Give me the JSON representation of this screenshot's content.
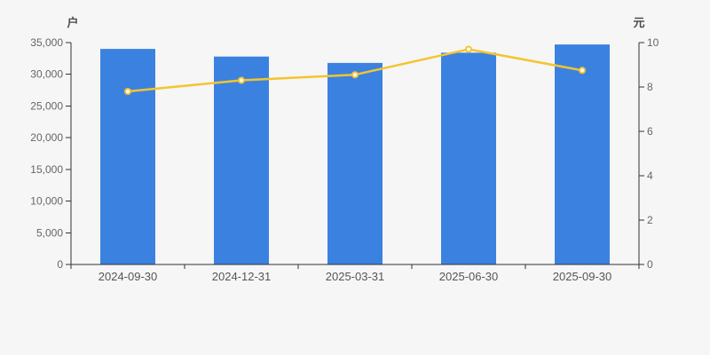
{
  "app": {
    "background_color": "#f6f6f7",
    "axis_line_color": "#333333",
    "tick_label_color": "#666666",
    "x_label_color": "#555555",
    "axis_name_color": "#4c4c4c"
  },
  "chart_data": {
    "type": "bar+line combo (dual y-axis)",
    "title": "",
    "categories": [
      "2024-09-30",
      "2024-12-31",
      "2025-03-31",
      "2025-06-30",
      "2025-09-30"
    ],
    "series": [
      {
        "type": "bar",
        "axis": "left",
        "unit": "户",
        "values": [
          34000,
          32800,
          31800,
          33400,
          34700
        ],
        "color": "#3b82e0"
      },
      {
        "type": "line",
        "axis": "right",
        "unit": "元",
        "values": [
          7.8,
          8.3,
          8.55,
          9.7,
          8.75
        ],
        "color": "#f5c42e",
        "marker_fill": "#ffffff"
      }
    ],
    "y_axis_left": {
      "name": "户",
      "min": 0,
      "max": 35000,
      "tick_labels": [
        "0",
        "5,000",
        "10,000",
        "15,000",
        "20,000",
        "25,000",
        "30,000",
        "35,000"
      ]
    },
    "y_axis_right": {
      "name": "元",
      "min": 0,
      "max": 10,
      "tick_labels": [
        "0",
        "2",
        "4",
        "6",
        "8",
        "10"
      ]
    },
    "grid": {
      "gridlines": "off",
      "legend": "none"
    }
  }
}
